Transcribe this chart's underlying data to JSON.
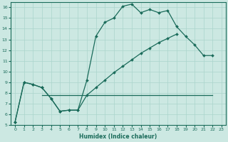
{
  "xlabel": "Humidex (Indice chaleur)",
  "bg_color": "#cce8e2",
  "grid_color": "#aad4cc",
  "line_color": "#1a6b5a",
  "xlim": [
    -0.5,
    23.5
  ],
  "ylim": [
    5,
    16.5
  ],
  "xticks": [
    0,
    1,
    2,
    3,
    4,
    5,
    6,
    7,
    8,
    9,
    10,
    11,
    12,
    13,
    14,
    15,
    16,
    17,
    18,
    19,
    20,
    21,
    22,
    23
  ],
  "yticks": [
    5,
    6,
    7,
    8,
    9,
    10,
    11,
    12,
    13,
    14,
    15,
    16
  ],
  "curve1_x": [
    0,
    1,
    2,
    3,
    4,
    5,
    6,
    7,
    8,
    9,
    10,
    11,
    12,
    13,
    14,
    15,
    16,
    17,
    18,
    19,
    20,
    21,
    22
  ],
  "curve1_y": [
    5.3,
    9.0,
    8.8,
    8.5,
    7.5,
    6.3,
    6.4,
    6.4,
    9.2,
    13.3,
    14.6,
    15.0,
    16.1,
    16.3,
    15.5,
    15.8,
    15.5,
    15.7,
    14.2,
    13.3,
    12.5,
    11.5,
    11.5
  ],
  "curve2_x": [
    0,
    1,
    2,
    3,
    4,
    5,
    6,
    7,
    8,
    9,
    10,
    11,
    12,
    13,
    14,
    15,
    16,
    17,
    18,
    19,
    20,
    21,
    22
  ],
  "curve2_y": [
    5.3,
    9.0,
    8.8,
    8.5,
    7.5,
    6.3,
    6.4,
    6.4,
    7.8,
    8.5,
    9.2,
    9.9,
    10.5,
    11.1,
    11.7,
    12.2,
    12.7,
    13.1,
    13.5,
    null,
    null,
    null,
    null
  ],
  "hline_x": [
    3,
    22
  ],
  "hline_y": [
    7.8,
    7.8
  ]
}
